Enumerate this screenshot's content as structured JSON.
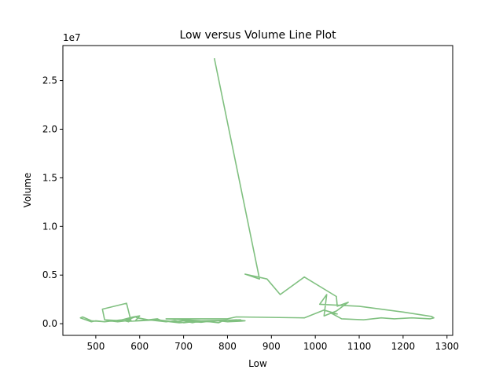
{
  "chart_data": {
    "type": "line",
    "title": "Low versus Volume Line Plot",
    "xlabel": "Low",
    "ylabel": "Volume",
    "offset_label": "1e7",
    "xlim": [
      425,
      1313
    ],
    "ylim": [
      -1200000,
      28600000
    ],
    "grid": false,
    "color": "#80c080",
    "xticks": [
      400,
      500,
      600,
      700,
      800,
      900,
      1000,
      1100,
      1200,
      1300
    ],
    "yticks": [
      0,
      5000000,
      10000000,
      15000000,
      20000000,
      25000000
    ],
    "ytick_labels": [
      "0.0",
      "0.5",
      "1.0",
      "1.5",
      "2.0",
      "2.5"
    ],
    "series": [
      {
        "x": [
          770,
          873,
          840,
          890,
          920,
          975,
          1048,
          1050,
          1075,
          1048,
          1020,
          1026,
          1010,
          1100,
          1200,
          1265,
          1270,
          1262,
          1220,
          1180,
          1150,
          1110,
          1060,
          1040,
          1035,
          1050,
          1020,
          975,
          820,
          800,
          660,
          740,
          830,
          800,
          790,
          780,
          760,
          700,
          720,
          730,
          750,
          690,
          650,
          640,
          620,
          590,
          600,
          585,
          560,
          540,
          520,
          500,
          490,
          465,
          470,
          490,
          520,
          530,
          550,
          570,
          580,
          575,
          565,
          590,
          595,
          620,
          640,
          660,
          680,
          700,
          720,
          740,
          760,
          780,
          800,
          830,
          840,
          820,
          800,
          780,
          760,
          740,
          720,
          700,
          680,
          660,
          640,
          620,
          600,
          580,
          560,
          540,
          520,
          515,
          570,
          580
        ],
        "y": [
          27300000,
          4600000,
          5100000,
          4600000,
          3000000,
          4800000,
          2800000,
          1800000,
          2200000,
          1300000,
          800000,
          3000000,
          2000000,
          1800000,
          1200000,
          750000,
          600000,
          500000,
          600000,
          500000,
          600000,
          400000,
          500000,
          1000000,
          1100000,
          1000000,
          1400000,
          600000,
          700000,
          500000,
          500000,
          300000,
          400000,
          200000,
          300000,
          100000,
          200000,
          300000,
          100000,
          200000,
          250000,
          100000,
          300000,
          500000,
          400000,
          300000,
          800000,
          700000,
          400000,
          300000,
          200000,
          300000,
          200000,
          600000,
          700000,
          300000,
          200000,
          300000,
          200000,
          300000,
          400000,
          200000,
          300000,
          700000,
          600000,
          400000,
          300000,
          200000,
          300000,
          100000,
          200000,
          150000,
          250000,
          300000,
          200000,
          250000,
          300000,
          400000,
          350000,
          300000,
          250000,
          200000,
          250000,
          300000,
          200000,
          300000,
          400000,
          350000,
          300000,
          250000,
          300000,
          350000,
          400000,
          1500000,
          2100000,
          300000
        ]
      }
    ]
  }
}
